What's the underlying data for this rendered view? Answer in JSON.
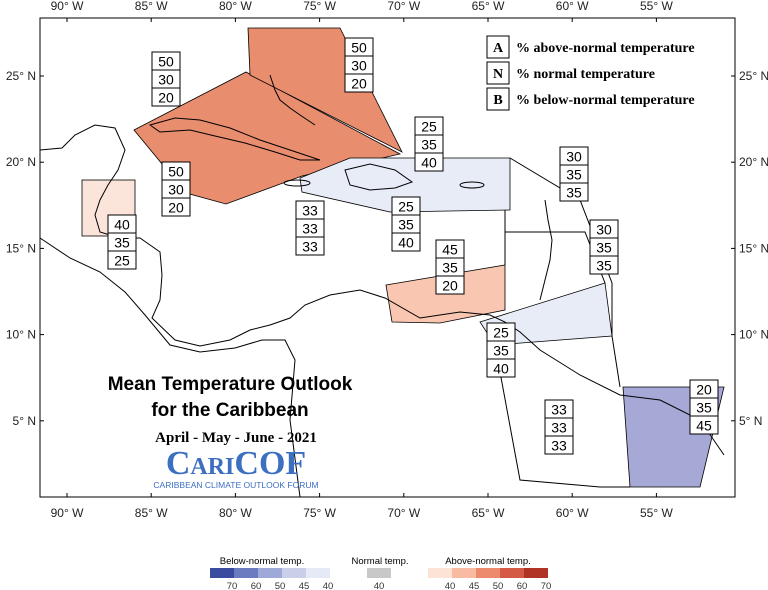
{
  "map": {
    "longitude_labels": [
      "90° W",
      "85° W",
      "80° W",
      "75° W",
      "70° W",
      "65° W",
      "60° W",
      "55° W"
    ],
    "latitude_labels": [
      "25° N",
      "20° N",
      "15° N",
      "10° N",
      "5° N"
    ],
    "key": [
      {
        "letter": "A",
        "text": "% above-normal temperature"
      },
      {
        "letter": "N",
        "text": "% normal temperature"
      },
      {
        "letter": "B",
        "text": "% below-normal temperature"
      }
    ],
    "title": [
      "Mean Temperature Outlook",
      "for the Caribbean"
    ],
    "period": "April - May - June - 2021",
    "logo": "CariCOF",
    "logo_subtitle": "CARIBBEAN CLIMATE OUTLOOK FORUM",
    "regions": [
      {
        "above": 50,
        "normal": 30,
        "below": 20
      },
      {
        "above": 50,
        "normal": 30,
        "below": 20
      },
      {
        "above": 50,
        "normal": 30,
        "below": 20
      },
      {
        "above": 40,
        "normal": 35,
        "below": 25
      },
      {
        "above": 33,
        "normal": 33,
        "below": 33
      },
      {
        "above": 25,
        "normal": 35,
        "below": 40
      },
      {
        "above": 25,
        "normal": 35,
        "below": 40
      },
      {
        "above": 30,
        "normal": 35,
        "below": 35
      },
      {
        "above": 30,
        "normal": 35,
        "below": 35
      },
      {
        "above": 45,
        "normal": 35,
        "below": 20
      },
      {
        "above": 25,
        "normal": 35,
        "below": 40
      },
      {
        "above": 33,
        "normal": 33,
        "below": 33
      },
      {
        "above": 20,
        "normal": 35,
        "below": 45
      }
    ]
  },
  "legend": {
    "below": {
      "label": "Below-normal temp.",
      "ticks": [
        70,
        60,
        50,
        45,
        40
      ]
    },
    "normal": {
      "label": "Normal temp.",
      "ticks": [
        40
      ]
    },
    "above": {
      "label": "Above-normal temp.",
      "ticks": [
        40,
        45,
        50,
        60,
        70
      ]
    }
  }
}
